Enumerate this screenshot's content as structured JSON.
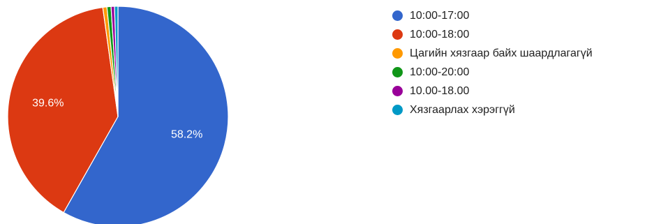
{
  "chart_data": {
    "type": "pie",
    "start_angle_deg": 90,
    "direction": "clockwise",
    "slices": [
      {
        "label": "10:00-17:00",
        "value": 58.2,
        "color": "#3366cc",
        "display": "58.2%"
      },
      {
        "label": "10:00-18:00",
        "value": 39.6,
        "color": "#dc3912",
        "display": "39.6%"
      },
      {
        "label": "Цагийн хязгаар байх шаардлагагүй",
        "value": 0.6,
        "color": "#ff9900",
        "display": ""
      },
      {
        "label": "10:00-20:00",
        "value": 0.6,
        "color": "#109618",
        "display": ""
      },
      {
        "label": "10.00-18.00",
        "value": 0.5,
        "color": "#990099",
        "display": ""
      },
      {
        "label": "Хязгаарлах хэрэггүй",
        "value": 0.5,
        "color": "#0099c6",
        "display": ""
      }
    ],
    "legend_position": "right"
  }
}
